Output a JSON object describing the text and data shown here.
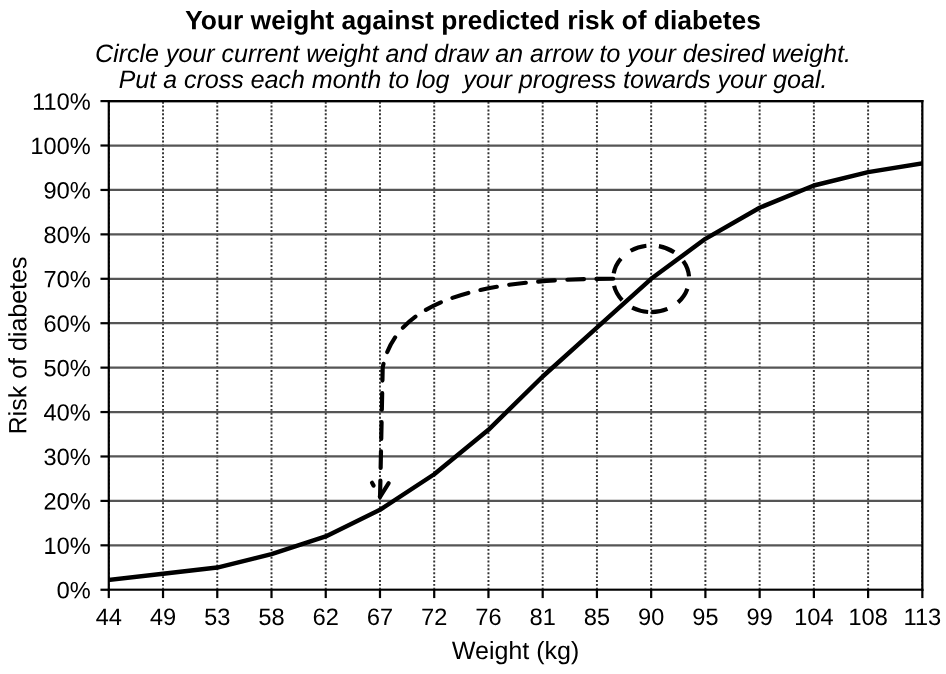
{
  "chart_data": {
    "type": "line",
    "title": "Your weight against predicted risk of diabetes",
    "subtitle": "Circle your current weight and draw an arrow to your desired weight.\nPut a cross each month to log  your progress towards your goal.",
    "xlabel": "Weight (kg)",
    "ylabel": "Risk of diabetes",
    "categories": [
      "44",
      "49",
      "53",
      "58",
      "62",
      "67",
      "72",
      "76",
      "81",
      "85",
      "90",
      "95",
      "99",
      "104",
      "108",
      "113"
    ],
    "series": [
      {
        "color": "#000000",
        "values": [
          2.2,
          3.6,
          5,
          8,
          12,
          18,
          26,
          36,
          48,
          59,
          70,
          79,
          86,
          91,
          94,
          96
        ]
      }
    ],
    "ylim": [
      0,
      110
    ],
    "yticks": [
      {
        "value": 0,
        "label": "0%"
      },
      {
        "value": 10,
        "label": "10%"
      },
      {
        "value": 20,
        "label": "20%"
      },
      {
        "value": 30,
        "label": "30%"
      },
      {
        "value": 40,
        "label": "40%"
      },
      {
        "value": 50,
        "label": "50%"
      },
      {
        "value": 60,
        "label": "60%"
      },
      {
        "value": 70,
        "label": "70%"
      },
      {
        "value": 80,
        "label": "80%"
      },
      {
        "value": 90,
        "label": "90%"
      },
      {
        "value": 100,
        "label": "100%"
      },
      {
        "value": 110,
        "label": "110%"
      }
    ],
    "grid": true,
    "legend": false,
    "marker": "none",
    "line_style": "solid"
  }
}
